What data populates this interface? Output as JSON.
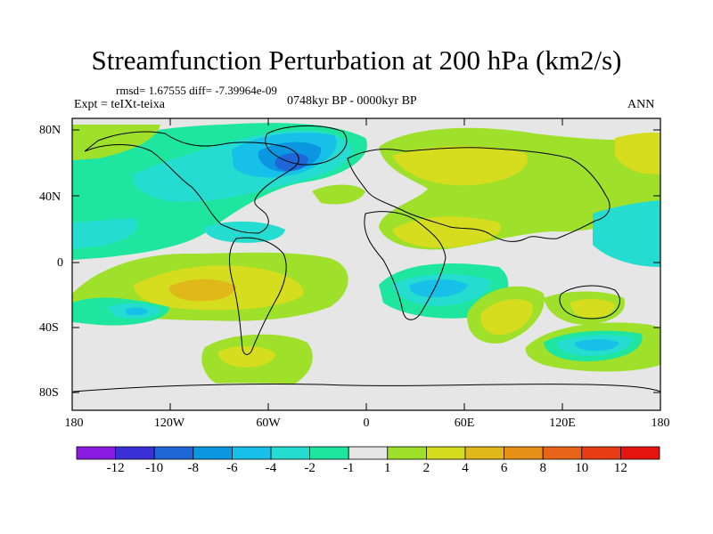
{
  "title": "Streamfunction Perturbation at 200 hPa (km2/s)",
  "stats_line": "rmsd= 1.67555 diff= -7.39964e-09",
  "experiment": "Expt = teIXt-teixa",
  "period": "0748kyr BP - 0000kyr BP",
  "season": "ANN",
  "lat_ticks": [
    "80N",
    "40N",
    "0",
    "40S",
    "80S"
  ],
  "lon_ticks": [
    "180",
    "120W",
    "60W",
    "0",
    "60E",
    "120E",
    "180"
  ],
  "colorbar": {
    "labels": [
      "-12",
      "-10",
      "-8",
      "-6",
      "-4",
      "-2",
      "-1",
      "1",
      "2",
      "4",
      "6",
      "8",
      "10",
      "12"
    ],
    "colors": [
      "#8a1ae0",
      "#3a2fd6",
      "#1f66d8",
      "#0a96e0",
      "#16c0e8",
      "#25dcd0",
      "#1ee6a0",
      "#e6e6e6",
      "#9ee02a",
      "#d6dc1e",
      "#e0b81a",
      "#e69018",
      "#e86418",
      "#e83c14",
      "#e6140e"
    ]
  },
  "colors": {
    "neutral": "#e6e6e6",
    "land": "#000000"
  }
}
